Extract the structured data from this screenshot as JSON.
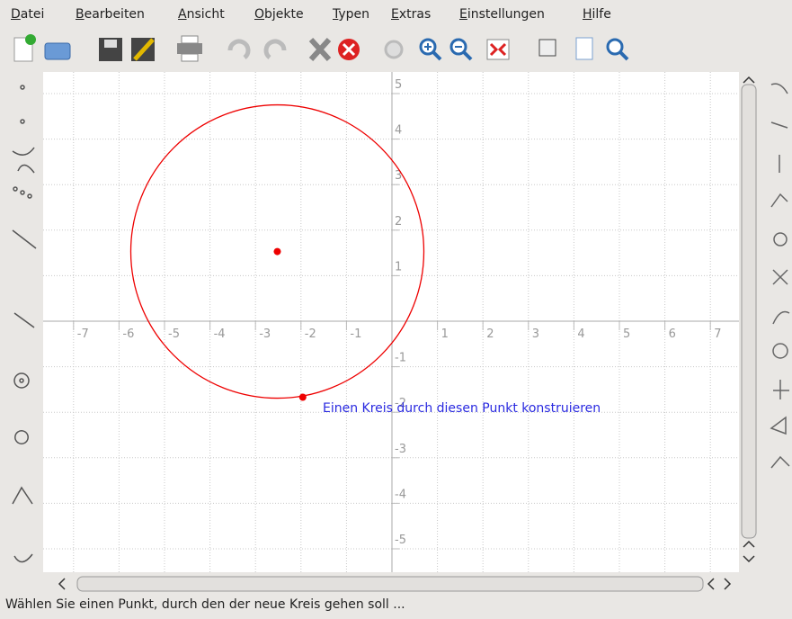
{
  "menu": [
    "Datei",
    "Bearbeiten",
    "Ansicht",
    "Objekte",
    "Typen",
    "Extras",
    "Einstellungen",
    "Hilfe"
  ],
  "canvas": {
    "xticks": [
      -7,
      -6,
      -5,
      -4,
      -3,
      -2,
      -1,
      1,
      2,
      3,
      4,
      5,
      6,
      7
    ],
    "yticks": [
      -5,
      -4,
      -3,
      -2,
      -1,
      1,
      2,
      3,
      4,
      5
    ],
    "tooltip": "Einen Kreis durch diesen Punkt konstruieren"
  },
  "status": "Wählen Sie einen Punkt, durch den der neue Kreis gehen soll ..."
}
